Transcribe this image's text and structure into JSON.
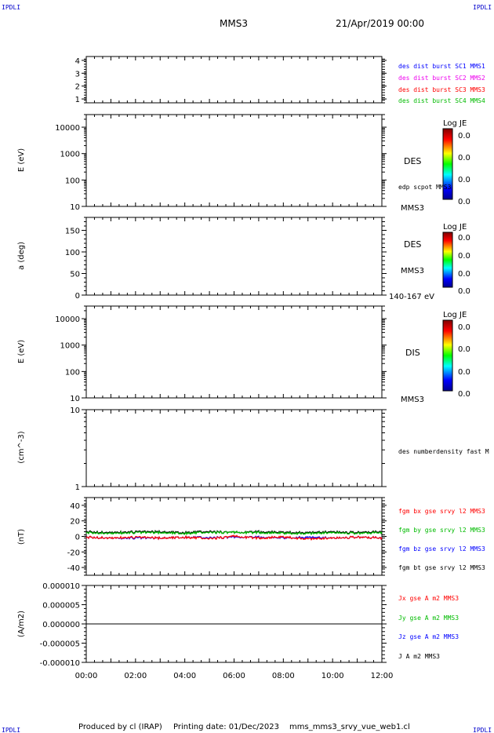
{
  "header": {
    "corner_tl": "IPDLI",
    "corner_tr": "IPDLI",
    "corner_bl": "IPDLI",
    "corner_br": "IPDLI",
    "spacecraft": "MMS3",
    "date": "21/Apr/2019 00:00"
  },
  "footer": {
    "produced_by": "Produced by cl (IRAP)",
    "printing_date": "Printing date: 01/Dec/2023",
    "filename": "mms_mms3_srvy_vue_web1.cl"
  },
  "colors": {
    "blue": "#0000ff",
    "magenta": "#ee00ee",
    "red": "#ff0000",
    "green": "#00bb00",
    "black": "#000000"
  },
  "chart_data": [
    {
      "type": "table",
      "panel": "burst",
      "y_ticks": [
        "4",
        "3",
        "2",
        "1"
      ],
      "ylim": [
        0.7,
        4.3
      ],
      "legend": [
        {
          "text": "des dist burst SC1 MMS1",
          "color": "#0000ff"
        },
        {
          "text": "des dist burst SC2 MMS2",
          "color": "#ee00ee"
        },
        {
          "text": "des dist burst SC3 MMS3",
          "color": "#ff0000"
        },
        {
          "text": "des dist burst SC4 MMS4",
          "color": "#00bb00"
        }
      ]
    },
    {
      "type": "heatmap",
      "panel": "des-energy",
      "ylabel": "E (eV)",
      "scale": "log",
      "y_ticks": [
        "10000",
        "1000",
        "100",
        "10"
      ],
      "ylim": [
        10,
        30000
      ],
      "label": "DES",
      "sub_label": "edp scpot MMS3",
      "bottom_label": "MMS3",
      "colorbar": {
        "title": "Log JE",
        "ticks": [
          "0.0",
          "0.0",
          "0.0",
          "0.0"
        ]
      }
    },
    {
      "type": "heatmap",
      "panel": "des-pitch",
      "ylabel": "a (deg)",
      "y_ticks": [
        "150",
        "100",
        "50",
        "0"
      ],
      "ylim": [
        0,
        180
      ],
      "label": "DES",
      "sub_label": "MMS3",
      "bottom_label": "140-167 eV",
      "colorbar": {
        "title": "Log JE",
        "ticks": [
          "0.0",
          "0.0",
          "0.0",
          "0.0"
        ]
      }
    },
    {
      "type": "heatmap",
      "panel": "dis-energy",
      "ylabel": "E (eV)",
      "scale": "log",
      "y_ticks": [
        "10000",
        "1000",
        "100",
        "10"
      ],
      "ylim": [
        10,
        30000
      ],
      "label": "DIS",
      "bottom_label": "MMS3",
      "colorbar": {
        "title": "Log JE",
        "ticks": [
          "0.0",
          "0.0",
          "0.0",
          "0.0"
        ]
      }
    },
    {
      "type": "line",
      "panel": "density",
      "ylabel": "(cm^-3)",
      "scale": "log",
      "y_ticks": [
        "10",
        "1"
      ],
      "ylim": [
        1,
        10
      ],
      "legend": [
        {
          "text": "des numberdensity fast M",
          "color": "#000000"
        }
      ]
    },
    {
      "type": "line",
      "panel": "fgm",
      "ylabel": "(nT)",
      "y_ticks": [
        "40",
        "20",
        "0",
        "-20",
        "-40"
      ],
      "ylim": [
        -50,
        50
      ],
      "x": [
        "00:00",
        "01:00",
        "02:00",
        "03:00",
        "04:00",
        "05:00",
        "06:00",
        "07:00",
        "08:00",
        "09:00",
        "10:00",
        "11:00",
        "12:00"
      ],
      "series": [
        {
          "name": "fgm bx gse srvy l2 MMS3",
          "color": "#ff0000",
          "values": [
            -1,
            -2,
            -1,
            -2,
            -1,
            -3,
            0,
            -2,
            -1,
            -3,
            -2,
            -1,
            -2
          ]
        },
        {
          "name": "fgm by gse srvy l2 MMS3",
          "color": "#00bb00",
          "values": [
            5,
            4,
            5,
            5,
            4,
            5,
            5,
            5,
            4,
            4,
            5,
            4,
            5
          ]
        },
        {
          "name": "fgm bz gse srvy l2 MMS3",
          "color": "#0000ff",
          "values": [
            -1,
            -2,
            -2,
            -2,
            -1,
            -2,
            -1,
            -1,
            -2,
            -1,
            -2,
            -1,
            -2
          ]
        },
        {
          "name": "fgm bt gse srvy l2 MMS3",
          "color": "#000000",
          "values": [
            6,
            5,
            6,
            6,
            5,
            6,
            5,
            6,
            5,
            5,
            6,
            5,
            6
          ]
        }
      ]
    },
    {
      "type": "line",
      "panel": "current",
      "ylabel": "(A/m2)",
      "y_ticks": [
        "0.000010",
        "0.000005",
        "0.000000",
        "-0.000005",
        "-0.000010"
      ],
      "ylim": [
        -1e-05,
        1e-05
      ],
      "x_ticks": [
        "00:00",
        "02:00",
        "04:00",
        "06:00",
        "08:00",
        "10:00",
        "12:00"
      ],
      "x": [
        "00:00",
        "02:00",
        "04:00",
        "06:00",
        "08:00",
        "10:00",
        "12:00"
      ],
      "series": [
        {
          "name": "Jx gse A m2 MMS3",
          "color": "#ff0000",
          "values": [
            0,
            0,
            0,
            0,
            0,
            0,
            0
          ]
        },
        {
          "name": "Jy gse A m2 MMS3",
          "color": "#00bb00",
          "values": [
            0,
            0,
            0,
            0,
            0,
            0,
            0
          ]
        },
        {
          "name": "Jz gse A m2 MMS3",
          "color": "#0000ff",
          "values": [
            0,
            0,
            0,
            0,
            0,
            0,
            0
          ]
        },
        {
          "name": "J A m2 MMS3",
          "color": "#000000",
          "values": [
            0,
            0,
            0,
            0,
            0,
            0,
            0
          ]
        }
      ]
    }
  ]
}
